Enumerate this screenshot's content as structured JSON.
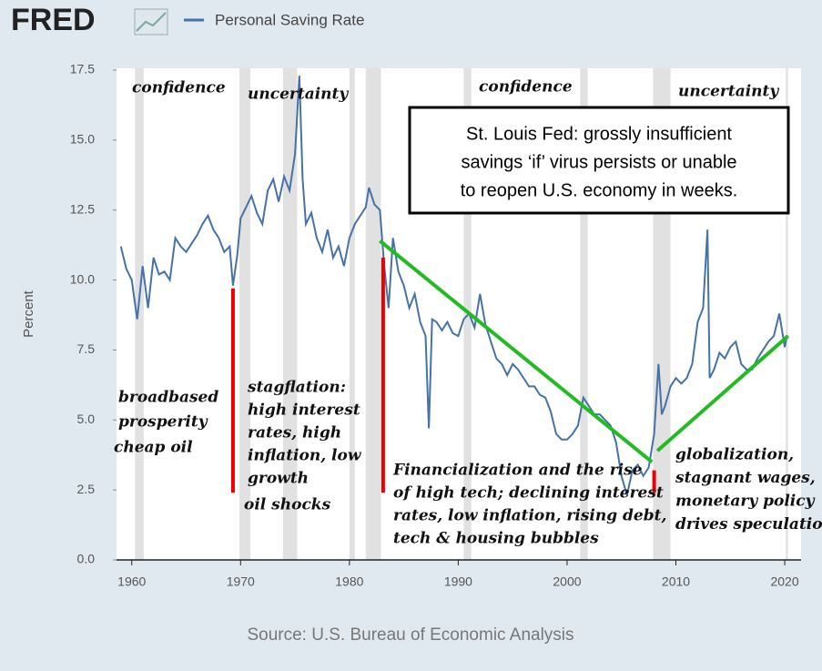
{
  "chart_data": {
    "type": "line",
    "logo": "FRED",
    "series": [
      {
        "name": "Personal Saving Rate",
        "color": "#4572a7",
        "x": [
          1959,
          1959.5,
          1960,
          1960.5,
          1961,
          1961.5,
          1962,
          1962.5,
          1963,
          1963.5,
          1964,
          1964.5,
          1965,
          1965.5,
          1966,
          1966.5,
          1967,
          1967.5,
          1968,
          1968.5,
          1969,
          1969.3,
          1969.7,
          1970,
          1970.5,
          1971,
          1971.5,
          1972,
          1972.5,
          1973,
          1973.5,
          1974,
          1974.5,
          1975,
          1975.4,
          1975.7,
          1976,
          1976.5,
          1977,
          1977.5,
          1978,
          1978.5,
          1979,
          1979.5,
          1980,
          1980.5,
          1981,
          1981.5,
          1981.8,
          1982.3,
          1982.8,
          1983.2,
          1983.6,
          1984,
          1984.5,
          1985,
          1985.5,
          1986,
          1986.5,
          1987,
          1987.3,
          1987.6,
          1988,
          1988.5,
          1989,
          1989.5,
          1990,
          1990.5,
          1991,
          1991.5,
          1992,
          1992.5,
          1993,
          1993.5,
          1994,
          1994.5,
          1995,
          1995.5,
          1996,
          1996.5,
          1997,
          1997.5,
          1998,
          1998.5,
          1999,
          1999.5,
          2000,
          2000.5,
          2001,
          2001.5,
          2002,
          2002.5,
          2003,
          2003.5,
          2004,
          2004.5,
          2005,
          2005.5,
          2006,
          2006.5,
          2007,
          2007.5,
          2008,
          2008.4,
          2008.7,
          2009,
          2009.5,
          2010,
          2010.5,
          2011,
          2011.5,
          2012,
          2012.5,
          2012.9,
          2013.1,
          2013.5,
          2014,
          2014.5,
          2015,
          2015.5,
          2016,
          2016.5,
          2017,
          2017.5,
          2018,
          2018.5,
          2019,
          2019.5,
          2020,
          2020.2
        ],
        "values": [
          11.2,
          10.4,
          10.0,
          8.6,
          10.5,
          9.0,
          10.8,
          10.2,
          10.3,
          10.0,
          11.5,
          11.2,
          11.0,
          11.3,
          11.6,
          12.0,
          12.3,
          11.8,
          11.5,
          11.0,
          11.2,
          9.8,
          10.9,
          12.2,
          12.6,
          13.0,
          12.4,
          12.0,
          13.2,
          13.6,
          12.8,
          13.7,
          13.2,
          14.5,
          17.3,
          13.6,
          12.0,
          12.4,
          11.5,
          11.0,
          11.8,
          10.8,
          11.2,
          10.5,
          11.5,
          12.0,
          12.3,
          12.6,
          13.3,
          12.7,
          12.5,
          10.5,
          9.0,
          11.5,
          10.3,
          9.8,
          9.0,
          9.5,
          8.5,
          8.0,
          4.7,
          8.6,
          8.5,
          8.2,
          8.5,
          8.1,
          8.0,
          8.6,
          8.8,
          8.3,
          9.5,
          8.4,
          7.8,
          7.2,
          7.0,
          6.6,
          7.0,
          6.8,
          6.5,
          6.2,
          6.2,
          5.9,
          5.8,
          5.3,
          4.5,
          4.3,
          4.3,
          4.5,
          4.8,
          5.8,
          5.5,
          5.2,
          5.2,
          5.0,
          4.8,
          4.2,
          3.0,
          2.3,
          3.2,
          3.4,
          3.0,
          3.3,
          4.5,
          7.0,
          5.2,
          5.5,
          6.2,
          6.5,
          6.3,
          6.5,
          7.0,
          8.5,
          9.0,
          11.8,
          6.5,
          6.8,
          7.4,
          7.2,
          7.6,
          7.8,
          7.0,
          6.8,
          6.8,
          7.2,
          7.5,
          7.8,
          8.0,
          8.8,
          7.6,
          8.0
        ]
      }
    ],
    "xlim": [
      1958.6,
      2021.5
    ],
    "ylim": [
      0,
      17.5
    ],
    "xticks": [
      1960,
      1970,
      1980,
      1990,
      2000,
      2010,
      2020
    ],
    "yticks": [
      {
        "value": 0,
        "label": "0.0"
      },
      2.5,
      {
        "value": 5,
        "label": "5.0"
      },
      7.5,
      {
        "value": 10,
        "label": "10.0"
      },
      12.5,
      {
        "value": 15,
        "label": "15.0"
      },
      17.5
    ],
    "y_label": "Percent",
    "recessions": [
      [
        1960.3,
        1961.1
      ],
      [
        1969.9,
        1970.9
      ],
      [
        1973.9,
        1975.2
      ],
      [
        1980.0,
        1980.5
      ],
      [
        1981.5,
        1982.9
      ],
      [
        1990.5,
        1991.2
      ],
      [
        2001.2,
        2001.9
      ],
      [
        2007.9,
        2009.5
      ],
      [
        2020.1,
        2020.3
      ]
    ],
    "trend_lines": [
      {
        "color": "#22bb22",
        "x": [
          1982.8,
          2007.8
        ],
        "y": [
          11.4,
          3.5
        ]
      },
      {
        "color": "#22bb22",
        "x": [
          2008.3,
          2020.3
        ],
        "y": [
          3.9,
          8.0
        ]
      }
    ],
    "markers": [
      {
        "color": "#ee0000",
        "x": 1969.3,
        "y": [
          2.4,
          9.7
        ]
      },
      {
        "color": "#ee0000",
        "x": 1983.1,
        "y": [
          2.4,
          10.8
        ]
      },
      {
        "color": "#ee0000",
        "x": 2008.0,
        "y": [
          2.4,
          3.2
        ]
      }
    ],
    "annotations": [
      [
        "confidence"
      ],
      [
        "uncertainty"
      ],
      [
        "confidence"
      ],
      [
        "uncertainty"
      ],
      [
        "broadbased",
        "prosperity"
      ],
      [
        "cheap oil"
      ],
      [
        "stagflation:",
        "high interest",
        "rates, high",
        "inflation, low",
        "growth"
      ],
      [
        "oil shocks"
      ],
      [
        "Financialization and the rise",
        "of high tech; declining interest",
        "rates, low inflation, rising debt,",
        "tech & housing bubbles"
      ],
      [
        "globalization,",
        "stagnant wages,",
        "monetary policy",
        "drives speculation"
      ]
    ],
    "callout": [
      "St. Louis Fed: grossly insufficient",
      "savings ‘if’ virus persists or unable",
      "to reopen U.S. economy in weeks."
    ],
    "source": "Source: U.S. Bureau of Economic Analysis"
  }
}
